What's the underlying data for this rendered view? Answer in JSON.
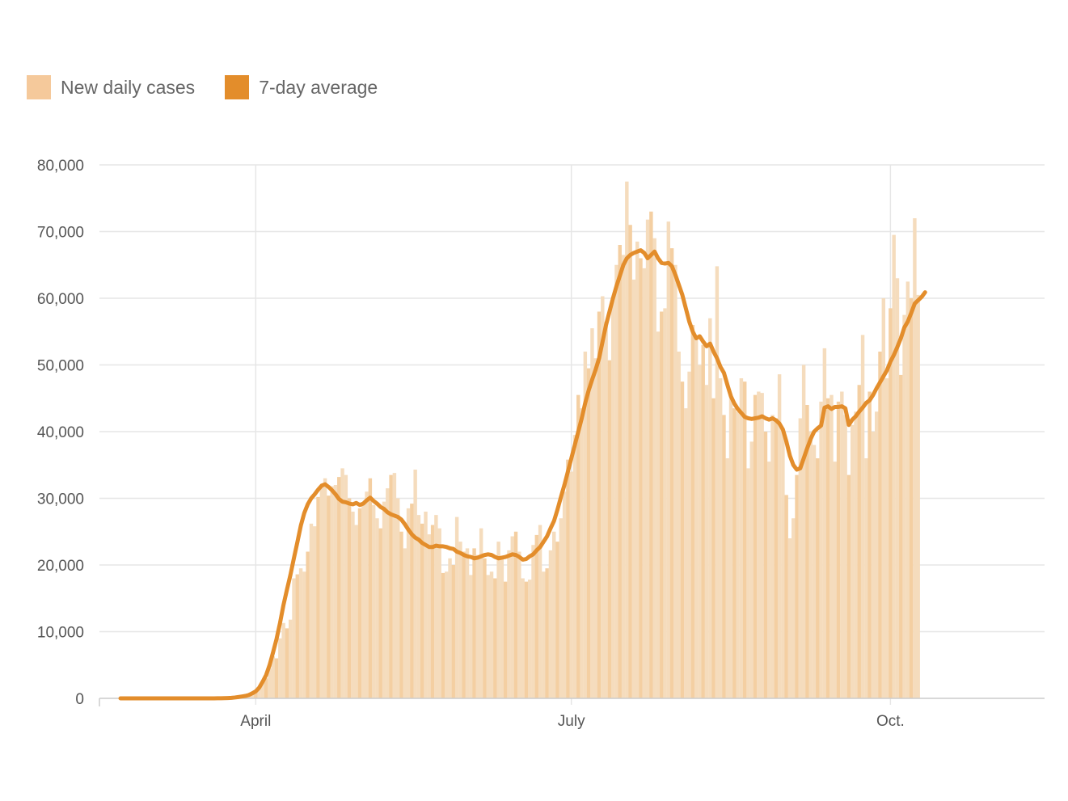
{
  "legend": {
    "daily": {
      "label": "New daily cases",
      "color": "#f5c99b"
    },
    "average": {
      "label": "7-day average",
      "color": "#e38d2b"
    }
  },
  "colors": {
    "bars": "#f5dcbd",
    "bars_highlight": "#f4cfa2",
    "line": "#e38d2b",
    "grid": "#e6e6e6",
    "axis": "#cccccc"
  },
  "chart_data": {
    "type": "bar+line",
    "title": "",
    "xlabel": "",
    "ylabel": "",
    "x_start": "2020-02-22",
    "x_ticks": [
      {
        "label": "April",
        "date": "2020-04-01"
      },
      {
        "label": "July",
        "date": "2020-07-01"
      },
      {
        "label": "Oct.",
        "date": "2020-10-01"
      }
    ],
    "y_ticks": [
      {
        "label": "0",
        "value": 0
      },
      {
        "label": "10,000",
        "value": 10000
      },
      {
        "label": "20,000",
        "value": 20000
      },
      {
        "label": "30,000",
        "value": 30000
      },
      {
        "label": "40,000",
        "value": 40000
      },
      {
        "label": "50,000",
        "value": 50000
      },
      {
        "label": "60,000",
        "value": 60000
      },
      {
        "label": "70,000",
        "value": 70000
      },
      {
        "label": "80,000",
        "value": 80000
      }
    ],
    "ylim": [
      0,
      80000
    ],
    "grid": true,
    "legend_position": "top-left",
    "series": [
      {
        "name": "New daily cases",
        "type": "bar",
        "values": [
          0,
          0,
          0,
          0,
          0,
          0,
          0,
          0,
          0,
          0,
          0,
          0,
          0,
          0,
          0,
          0,
          0,
          0,
          0,
          0,
          0,
          0,
          0,
          0,
          0,
          0,
          0,
          0,
          0,
          0,
          0,
          0,
          0,
          0,
          100,
          200,
          300,
          500,
          800,
          1100,
          1600,
          2300,
          3000,
          4500,
          6300,
          6000,
          9000,
          11300,
          10500,
          11800,
          18000,
          18600,
          19500,
          19000,
          22000,
          26200,
          25800,
          30200,
          32000,
          33000,
          30400,
          31800,
          32000,
          33200,
          34500,
          33500,
          30000,
          28000,
          26000,
          28500,
          29000,
          31000,
          33000,
          29000,
          27000,
          25500,
          29500,
          31500,
          33500,
          33800,
          30000,
          25000,
          22500,
          28500,
          29200,
          34300,
          27500,
          26200,
          28000,
          24600,
          26000,
          27500,
          25500,
          18800,
          19000,
          21000,
          20000,
          27200,
          23500,
          22000,
          22500,
          18500,
          22500,
          21500,
          25500,
          21000,
          18500,
          19000,
          18000,
          23500,
          21000,
          17500,
          22200,
          24300,
          25000,
          22000,
          18000,
          17500,
          17800,
          23000,
          24500,
          26000,
          19000,
          19500,
          22200,
          25000,
          23500,
          27000,
          31000,
          35800,
          34000,
          39500,
          45500,
          43500,
          52000,
          49500,
          55500,
          51000,
          58000,
          60300,
          56500,
          50700,
          59600,
          65000,
          68000,
          66500,
          77500,
          71000,
          62800,
          68500,
          66000,
          64500,
          71800,
          73000,
          69000,
          55000,
          58000,
          58500,
          71500,
          67500,
          65000,
          52000,
          47500,
          43500,
          49000,
          56000,
          54000,
          50000,
          53000,
          47000,
          57000,
          45000,
          64800,
          48000,
          42500,
          36000,
          45500,
          43500,
          43000,
          48000,
          47500,
          34500,
          38500,
          45500,
          46000,
          45800,
          40000,
          35500,
          42500,
          42000,
          48600,
          40000,
          30500,
          24000,
          27000,
          33500,
          42000,
          50000,
          44000,
          40000,
          38000,
          36000,
          44500,
          52500,
          45000,
          45500,
          35500,
          44500,
          46000,
          42500,
          33500,
          41000,
          43000,
          47000,
          54500,
          36000,
          46000,
          40000,
          43000,
          52000,
          60000,
          48000,
          58500,
          69500,
          63000,
          48500,
          57500,
          62500,
          60000,
          72000,
          60500
        ],
        "color": "#f5dcbd"
      },
      {
        "name": "7-day average",
        "type": "line",
        "values": [
          0,
          0,
          0,
          0,
          0,
          0,
          0,
          0,
          0,
          0,
          0,
          0,
          0,
          0,
          0,
          0,
          0,
          0,
          0,
          0,
          0,
          0,
          0,
          0,
          0,
          0,
          0,
          0,
          10,
          20,
          30,
          50,
          80,
          130,
          200,
          280,
          360,
          500,
          750,
          1050,
          1600,
          2500,
          3500,
          5000,
          6900,
          8900,
          11300,
          14000,
          16300,
          18500,
          21000,
          23400,
          25900,
          27800,
          29100,
          30000,
          30600,
          31300,
          31900,
          32100,
          31700,
          31200,
          30600,
          29900,
          29500,
          29400,
          29200,
          29100,
          29300,
          29000,
          29200,
          29700,
          30100,
          29600,
          29200,
          28700,
          28400,
          27900,
          27600,
          27400,
          27200,
          26800,
          26100,
          25300,
          24600,
          24100,
          23800,
          23300,
          23000,
          22700,
          22700,
          22900,
          22800,
          22800,
          22700,
          22500,
          22400,
          22000,
          21800,
          21500,
          21300,
          21200,
          21000,
          21100,
          21300,
          21500,
          21600,
          21500,
          21200,
          21000,
          21100,
          21200,
          21400,
          21600,
          21500,
          21200,
          20800,
          20900,
          21300,
          21600,
          22200,
          22700,
          23500,
          24300,
          25500,
          26600,
          28300,
          30200,
          32000,
          34000,
          36000,
          38000,
          40000,
          42000,
          44300,
          46200,
          47800,
          49300,
          51000,
          53500,
          56000,
          58000,
          60000,
          61800,
          63400,
          65000,
          66000,
          66500,
          66800,
          67000,
          67200,
          66800,
          66000,
          66500,
          67000,
          66000,
          65300,
          65200,
          65300,
          64800,
          63500,
          62000,
          60500,
          58500,
          56500,
          55000,
          54000,
          54300,
          53500,
          52800,
          53200,
          52000,
          51000,
          49700,
          48800,
          47000,
          45300,
          44200,
          43400,
          42800,
          42200,
          42000,
          41900,
          42000,
          42100,
          42300,
          42000,
          41800,
          42000,
          41700,
          41200,
          40300,
          38500,
          36400,
          35000,
          34300,
          34500,
          36000,
          37500,
          38900,
          40000,
          40500,
          40900,
          43600,
          43800,
          43400,
          43700,
          43700,
          43800,
          43500,
          41000,
          41800,
          42300,
          43000,
          43600,
          44300,
          44700,
          45500,
          46500,
          47400,
          48300,
          49200,
          50500,
          51500,
          52700,
          54000,
          55600,
          56500,
          57800,
          59200,
          59700,
          60200,
          60900
        ]
      }
    ]
  }
}
